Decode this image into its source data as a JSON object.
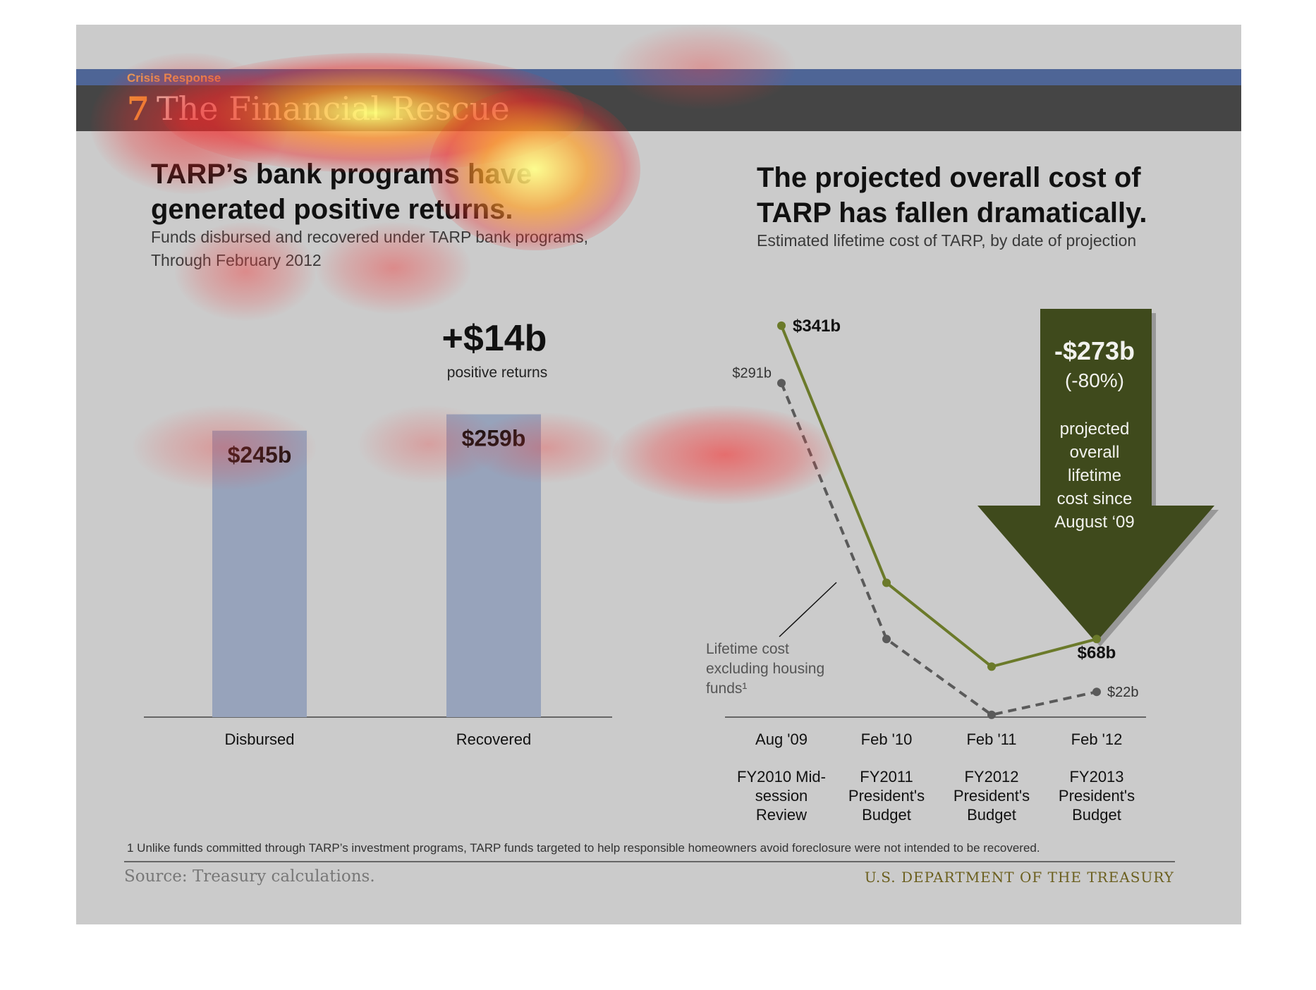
{
  "header": {
    "kicker": "Crisis Response",
    "number": "7",
    "title": "The Financial Rescue"
  },
  "left_panel": {
    "headline_line1": "TARP’s bank programs have",
    "headline_line2": "generated positive returns.",
    "subtitle_line1": "Funds disbursed and recovered under TARP bank programs,",
    "subtitle_line2": "Through February 2012"
  },
  "right_panel": {
    "headline_line1": "The projected overall cost of",
    "headline_line2": "TARP has fallen dramatically.",
    "subtitle": "Estimated lifetime cost of TARP, by date of projection"
  },
  "footer": {
    "footnote": "1 Unlike funds committed through TARP’s investment programs, TARP funds targeted to help responsible homeowners avoid foreclosure were not intended to be recovered.",
    "source": "Source: Treasury calculations.",
    "agency": "U.S. DEPARTMENT OF THE TREASURY"
  },
  "colors": {
    "bar": "#97a3bb",
    "olive": "#6b7a2a",
    "dashed": "#5a5a5a",
    "arrow": "#3f4a1c",
    "banner_blue": "#4e6596"
  },
  "chart_data": [
    {
      "type": "bar",
      "categories": [
        "Disbursed",
        "Recovered"
      ],
      "values": [
        245,
        259
      ],
      "value_labels": [
        "$245b",
        "$259b"
      ],
      "ylim": [
        0,
        310
      ],
      "annotation": {
        "value": "+$14b",
        "text": "positive returns"
      }
    },
    {
      "type": "line",
      "x": [
        "Aug '09",
        "Feb '10",
        "Feb '11",
        "Feb '12"
      ],
      "x_sublabels": [
        [
          "FY2010 Mid-",
          "session",
          "Review"
        ],
        [
          "FY2011",
          "President's",
          "Budget"
        ],
        [
          "FY2012",
          "President's",
          "Budget"
        ],
        [
          "FY2013",
          "President's",
          "Budget"
        ]
      ],
      "series": [
        {
          "values": [
            341,
            117,
            44,
            68
          ],
          "labels": [
            "$341b",
            "",
            "",
            "$68b"
          ],
          "style": "solid"
        },
        {
          "name": "Lifetime cost excluding housing funds¹",
          "values": [
            291,
            68,
            2,
            22
          ],
          "labels": [
            "$291b",
            "",
            "",
            "$22b"
          ],
          "style": "dashed"
        }
      ],
      "ylim": [
        0,
        360
      ],
      "callout": {
        "value": "-$273b",
        "percent": "(-80%)",
        "text": [
          "projected",
          "overall",
          "lifetime",
          "cost since",
          "August ‘09"
        ]
      }
    }
  ]
}
